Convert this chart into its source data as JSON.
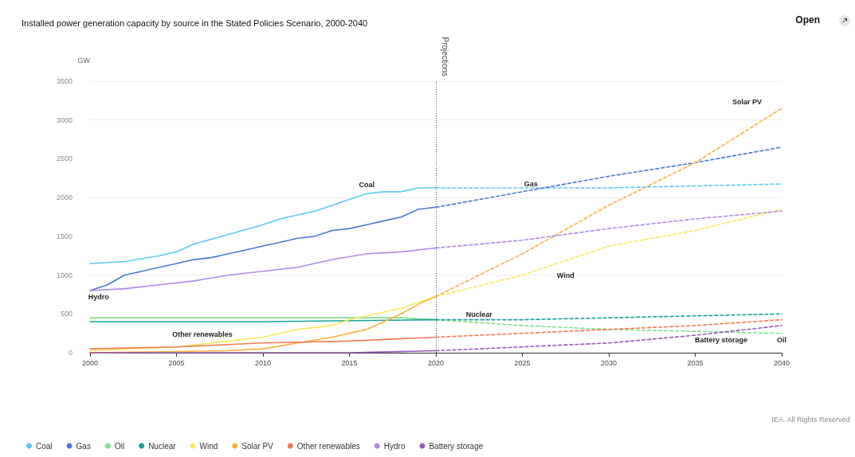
{
  "chart_data": {
    "type": "line",
    "title": "Installed power generation capacity by source in the Stated Policies Scenario, 2000-2040",
    "ylabel": "GW",
    "xlim": [
      2000,
      2040
    ],
    "xticks": [
      2000,
      2005,
      2010,
      2015,
      2020,
      2025,
      2030,
      2035,
      2040
    ],
    "ylim": [
      0,
      3500
    ],
    "yticks": [
      0,
      500,
      1000,
      1500,
      2000,
      2500,
      3000,
      3500
    ],
    "grid": "y",
    "legend": "bottom left",
    "marker": "none",
    "line_style": "solid",
    "ref_lines": [
      {
        "axis": "x",
        "value": 2020,
        "label": "Projections",
        "line_style": "dotted",
        "color": "#555555"
      }
    ],
    "series": [
      {
        "name": "Coal",
        "color": "#5bc8f5",
        "x": [
          2000,
          2002,
          2004,
          2005,
          2006,
          2008,
          2010,
          2011,
          2012,
          2013,
          2014,
          2015,
          2016,
          2017,
          2018,
          2019,
          2020
        ],
        "values": [
          1150,
          1175,
          1250,
          1300,
          1400,
          1525,
          1650,
          1725,
          1775,
          1825,
          1900,
          1975,
          2050,
          2075,
          2075,
          2125,
          2125
        ]
      },
      {
        "name": "Gas",
        "color": "#4a78d4",
        "x": [
          2000,
          2001,
          2002,
          2003,
          2004,
          2005,
          2006,
          2007,
          2008,
          2009,
          2010,
          2011,
          2012,
          2013,
          2014,
          2015,
          2016,
          2017,
          2018,
          2019,
          2020
        ],
        "values": [
          800,
          875,
          1000,
          1050,
          1100,
          1150,
          1200,
          1225,
          1275,
          1325,
          1375,
          1425,
          1475,
          1500,
          1575,
          1600,
          1650,
          1700,
          1750,
          1850,
          1875
        ]
      },
      {
        "name": "Oil",
        "color": "#7ee08e",
        "x": [
          2000,
          2010,
          2018,
          2020
        ],
        "values": [
          450,
          450,
          450,
          425
        ]
      },
      {
        "name": "Nuclear",
        "color": "#17a398",
        "x": [
          2000,
          2010,
          2020
        ],
        "values": [
          400,
          400,
          425
        ]
      },
      {
        "name": "Wind",
        "color": "#fbe85a",
        "x": [
          2000,
          2005,
          2008,
          2010,
          2012,
          2014,
          2015,
          2016,
          2018,
          2020
        ],
        "values": [
          25,
          75,
          150,
          200,
          300,
          350,
          425,
          475,
          575,
          725
        ]
      },
      {
        "name": "Solar PV",
        "color": "#fbb040",
        "x": [
          2000,
          2008,
          2010,
          2012,
          2014,
          2015,
          2016,
          2017,
          2018,
          2019,
          2020
        ],
        "values": [
          0,
          25,
          50,
          125,
          200,
          250,
          300,
          400,
          500,
          625,
          725
        ]
      },
      {
        "name": "Other renewables",
        "color": "#f47a52",
        "x": [
          2000,
          2005,
          2010,
          2015,
          2020
        ],
        "values": [
          50,
          75,
          125,
          150,
          200
        ]
      },
      {
        "name": "Hydro",
        "color": "#b08ae8",
        "x": [
          2000,
          2002,
          2004,
          2006,
          2008,
          2010,
          2012,
          2014,
          2016,
          2018,
          2020
        ],
        "values": [
          800,
          825,
          875,
          925,
          1000,
          1050,
          1100,
          1200,
          1275,
          1300,
          1350
        ]
      },
      {
        "name": "Battery storage",
        "color": "#9b59b6",
        "x": [
          2000,
          2015,
          2020
        ],
        "values": [
          0,
          0,
          25
        ]
      },
      {
        "color": "#5bc8f5",
        "line_style": "dashed",
        "x": [
          2020,
          2025,
          2030,
          2035,
          2040
        ],
        "values": [
          2125,
          2125,
          2125,
          2150,
          2175
        ]
      },
      {
        "color": "#4a78d4",
        "line_style": "dashed",
        "x": [
          2020,
          2025,
          2030,
          2035,
          2040
        ],
        "values": [
          1875,
          2075,
          2275,
          2450,
          2650
        ]
      },
      {
        "color": "#7ee08e",
        "line_style": "dashed",
        "x": [
          2020,
          2025,
          2030,
          2035,
          2040
        ],
        "values": [
          425,
          350,
          300,
          275,
          250
        ]
      },
      {
        "color": "#17a398",
        "line_style": "dashed",
        "x": [
          2020,
          2025,
          2030,
          2035,
          2040
        ],
        "values": [
          425,
          425,
          450,
          475,
          500
        ]
      },
      {
        "color": "#fbe85a",
        "line_style": "dashed",
        "x": [
          2020,
          2025,
          2030,
          2035,
          2040
        ],
        "values": [
          725,
          1000,
          1375,
          1575,
          1850
        ]
      },
      {
        "color": "#fbb040",
        "line_style": "dashed",
        "x": [
          2020,
          2025,
          2030,
          2035,
          2040
        ],
        "values": [
          725,
          1275,
          1900,
          2450,
          3150
        ]
      },
      {
        "color": "#f47a52",
        "line_style": "dashed",
        "x": [
          2020,
          2025,
          2030,
          2035,
          2040
        ],
        "values": [
          200,
          250,
          300,
          350,
          425
        ]
      },
      {
        "color": "#b08ae8",
        "line_style": "dashed",
        "x": [
          2020,
          2025,
          2030,
          2035,
          2040
        ],
        "values": [
          1350,
          1450,
          1600,
          1725,
          1825
        ]
      },
      {
        "color": "#9b59b6",
        "line_style": "dashed",
        "x": [
          2020,
          2025,
          2030,
          2035,
          2040
        ],
        "values": [
          25,
          75,
          125,
          225,
          350
        ]
      }
    ],
    "annotations": [
      "Open",
      "IEA. All Rights Reserved",
      "Coal",
      "Gas",
      "Hydro",
      "Nuclear",
      "Wind",
      "Solar PV",
      "Other renewables",
      "Battery storage",
      "Oil"
    ]
  }
}
